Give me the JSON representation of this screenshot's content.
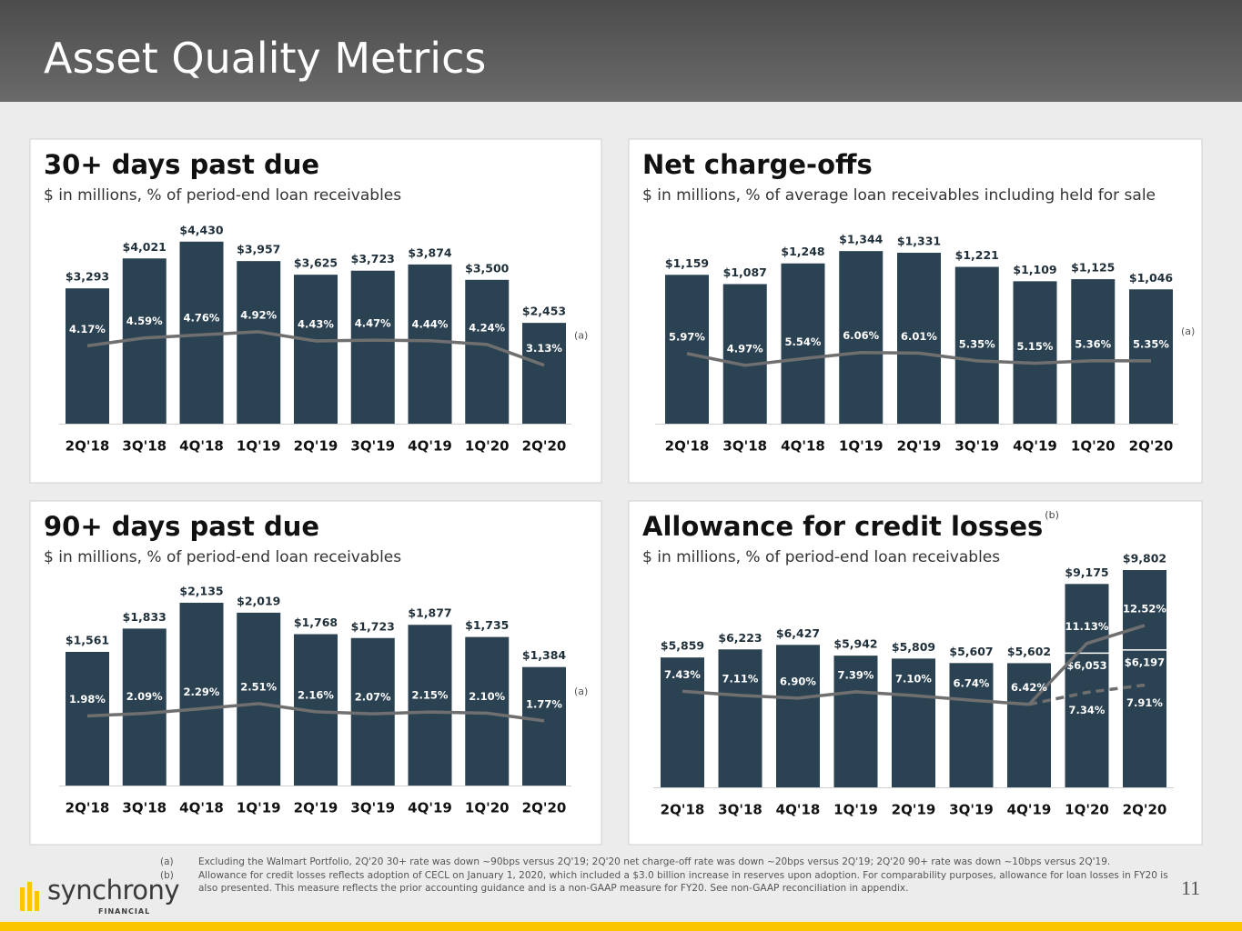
{
  "header": {
    "title": "Asset Quality Metrics"
  },
  "chart_data": [
    {
      "type": "bar_line",
      "title": "30+ days past due",
      "subtitle": "$ in millions, % of period-end loan receivables",
      "categories": [
        "2Q'18",
        "3Q'18",
        "4Q'18",
        "1Q'19",
        "2Q'19",
        "3Q'19",
        "4Q'19",
        "1Q'20",
        "2Q'20"
      ],
      "series": [
        {
          "type": "bar",
          "color": "#2b4253",
          "values": [
            3293,
            4021,
            4430,
            3957,
            3625,
            3723,
            3874,
            3500,
            2453
          ],
          "value_labels": [
            "$3,293",
            "$4,021",
            "$4,430",
            "$3,957",
            "$3,625",
            "$3,723",
            "$3,874",
            "$3,500",
            "$2,453"
          ]
        },
        {
          "type": "line",
          "axis": "y2",
          "color": "#6f6f6f",
          "values": [
            4.17,
            4.59,
            4.76,
            4.92,
            4.43,
            4.47,
            4.44,
            4.24,
            3.13
          ],
          "value_labels": [
            "4.17%",
            "4.59%",
            "4.76%",
            "4.92%",
            "4.43%",
            "4.47%",
            "4.44%",
            "4.24%",
            "3.13%"
          ]
        }
      ],
      "ylim": [
        0,
        5000
      ],
      "y2lim": [
        0,
        11
      ],
      "annotation": "(a)"
    },
    {
      "type": "bar_line",
      "title": "Net charge-offs",
      "subtitle": "$ in millions, % of average loan receivables including held for sale",
      "categories": [
        "2Q'18",
        "3Q'18",
        "4Q'18",
        "1Q'19",
        "2Q'19",
        "3Q'19",
        "4Q'19",
        "1Q'20",
        "2Q'20"
      ],
      "series": [
        {
          "type": "bar",
          "color": "#2b4253",
          "values": [
            1159,
            1087,
            1248,
            1344,
            1331,
            1221,
            1109,
            1125,
            1046
          ],
          "value_labels": [
            "$1,159",
            "$1,087",
            "$1,248",
            "$1,344",
            "$1,331",
            "$1,221",
            "$1,109",
            "$1,125",
            "$1,046"
          ]
        },
        {
          "type": "line",
          "axis": "y2",
          "color": "#6f6f6f",
          "values": [
            5.97,
            4.97,
            5.54,
            6.06,
            6.01,
            5.35,
            5.15,
            5.36,
            5.35
          ],
          "value_labels": [
            "5.97%",
            "4.97%",
            "5.54%",
            "6.06%",
            "6.01%",
            "5.35%",
            "5.15%",
            "5.36%",
            "5.35%"
          ]
        }
      ],
      "ylim": [
        0,
        1600
      ],
      "y2lim": [
        0,
        17.5
      ],
      "annotation": "(a)"
    },
    {
      "type": "bar_line",
      "title": "90+ days past due",
      "subtitle": "$ in millions, % of period-end loan receivables",
      "categories": [
        "2Q'18",
        "3Q'18",
        "4Q'18",
        "1Q'19",
        "2Q'19",
        "3Q'19",
        "4Q'19",
        "1Q'20",
        "2Q'20"
      ],
      "series": [
        {
          "type": "bar",
          "color": "#2b4253",
          "values": [
            1561,
            1833,
            2135,
            2019,
            1768,
            1723,
            1877,
            1735,
            1384
          ],
          "value_labels": [
            "$1,561",
            "$1,833",
            "$2,135",
            "$2,019",
            "$1,768",
            "$1,723",
            "$1,877",
            "$1,735",
            "$1,384"
          ]
        },
        {
          "type": "line",
          "axis": "y2",
          "color": "#6f6f6f",
          "values": [
            1.98,
            2.09,
            2.29,
            2.51,
            2.16,
            2.07,
            2.15,
            2.1,
            1.77
          ],
          "value_labels": [
            "1.98%",
            "2.09%",
            "2.29%",
            "2.51%",
            "2.16%",
            "2.07%",
            "2.15%",
            "2.10%",
            "1.77%"
          ]
        }
      ],
      "ylim": [
        0,
        2400
      ],
      "y2lim": [
        -1,
        7.8
      ],
      "annotation": "(a)"
    },
    {
      "type": "bar_line",
      "title": "Allowance for credit losses",
      "title_note": "(b)",
      "subtitle": "$ in millions, % of period-end loan receivables",
      "categories": [
        "2Q'18",
        "3Q'18",
        "4Q'18",
        "1Q'19",
        "2Q'19",
        "3Q'19",
        "4Q'19",
        "1Q'20",
        "2Q'20"
      ],
      "series": [
        {
          "type": "bar",
          "color": "#2b4253",
          "values": [
            5859,
            6223,
            6427,
            5942,
            5809,
            5607,
            5602,
            9175,
            9802
          ],
          "value_labels": [
            "$5,859",
            "$6,223",
            "$6,427",
            "$5,942",
            "$5,809",
            "$5,607",
            "$5,602",
            "$9,175",
            "$9,802"
          ]
        },
        {
          "type": "level",
          "color": "#ffffff",
          "values": [
            null,
            null,
            null,
            null,
            null,
            null,
            null,
            6053,
            6197
          ],
          "value_labels": [
            null,
            null,
            null,
            null,
            null,
            null,
            null,
            "$6,053",
            "$6,197"
          ]
        },
        {
          "type": "line",
          "axis": "y2",
          "color": "#6f6f6f",
          "values": [
            7.43,
            7.11,
            6.9,
            7.39,
            7.1,
            6.74,
            6.42,
            11.13,
            12.52
          ],
          "value_labels": [
            "7.43%",
            "7.11%",
            "6.90%",
            "7.39%",
            "7.10%",
            "6.74%",
            "6.42%",
            "11.13%",
            "12.52%"
          ]
        },
        {
          "type": "line",
          "axis": "y2",
          "dashed": true,
          "color": "#6f6f6f",
          "values": [
            null,
            null,
            null,
            null,
            null,
            null,
            6.42,
            7.34,
            7.91
          ],
          "value_labels": [
            null,
            null,
            null,
            null,
            null,
            null,
            null,
            "7.34%",
            "7.91%"
          ]
        }
      ],
      "ylim": [
        0,
        10500
      ],
      "y2lim": [
        0,
        18
      ]
    }
  ],
  "footnotes": [
    {
      "marker": "(a)",
      "text": "Excluding the Walmart Portfolio, 2Q'20 30+ rate was down ~90bps versus 2Q'19; 2Q'20 net charge-off rate was down ~20bps versus 2Q'19; 2Q'20 90+ rate was down ~10bps versus 2Q'19."
    },
    {
      "marker": "(b)",
      "text": "Allowance for credit losses reflects adoption of CECL on January 1, 2020, which included a $3.0 billion increase in reserves upon adoption. For comparability purposes, allowance for loan losses in FY20 is also presented. This measure reflects the prior accounting guidance and is a non-GAAP measure for FY20. See non-GAAP reconciliation in appendix."
    }
  ],
  "logo": {
    "name": "synchrony",
    "tagline": "FINANCIAL"
  },
  "page_number": "11"
}
